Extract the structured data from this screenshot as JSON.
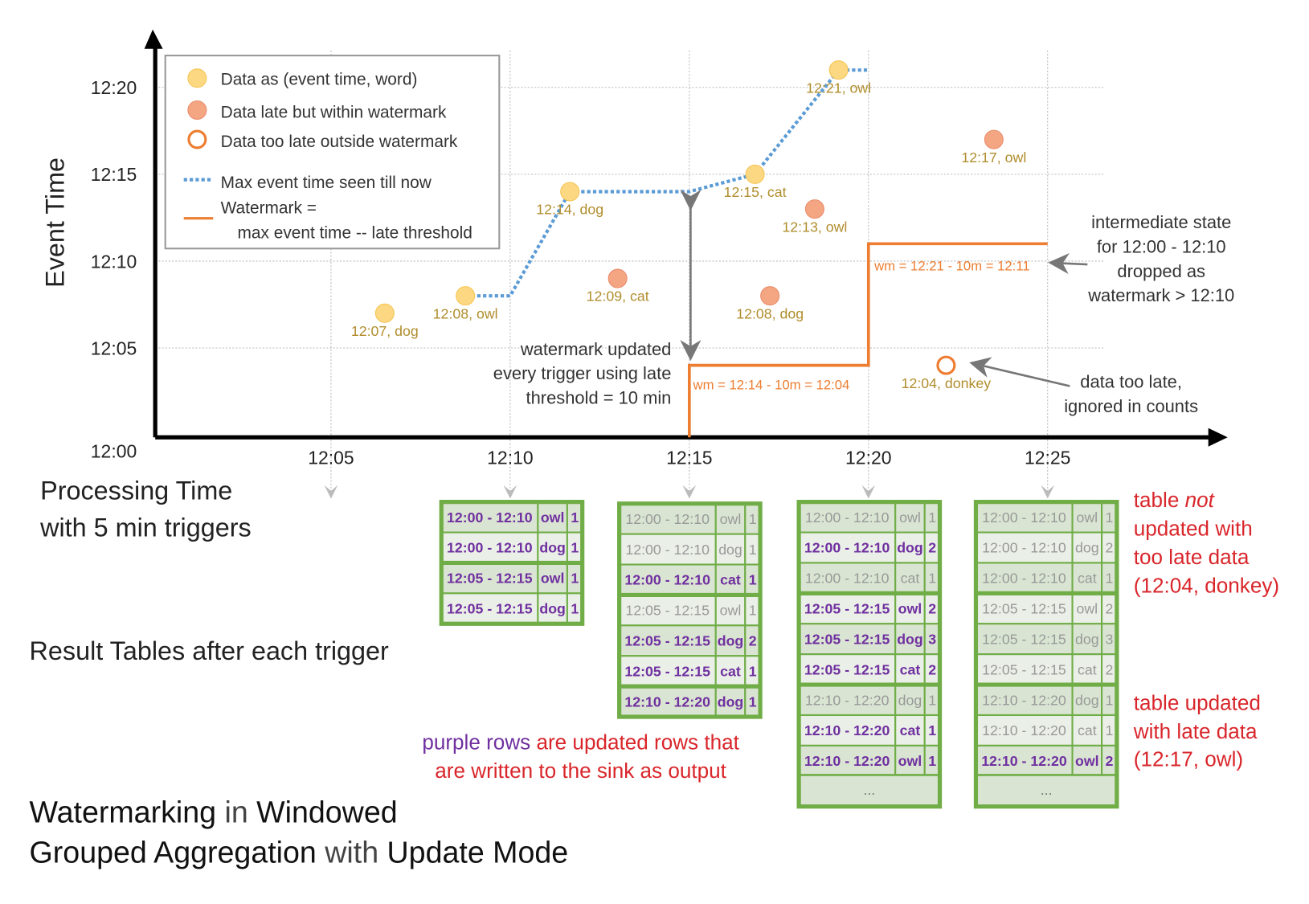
{
  "chart": {
    "y_axis_label": "Event Time",
    "x_axis_label_line1": "Processing Time",
    "x_axis_label_line2": "with 5 min triggers",
    "y_ticks": [
      "12:00",
      "12:05",
      "12:10",
      "12:15",
      "12:20"
    ],
    "x_ticks": [
      "12:05",
      "12:10",
      "12:15",
      "12:20",
      "12:25"
    ],
    "colors": {
      "data": "#fdd882",
      "late": "#f4a582",
      "too_late": "#ed7d31",
      "max_line": "#5b9bd5",
      "watermark": "#ed7d31",
      "label": "#b08d2c"
    },
    "points": [
      {
        "label": "12:07, dog",
        "event": "12:07",
        "processing": "12:06:30",
        "kind": "data"
      },
      {
        "label": "12:08, owl",
        "event": "12:08",
        "processing": "12:08:45",
        "kind": "data"
      },
      {
        "label": "12:14, dog",
        "event": "12:14",
        "processing": "12:11:40",
        "kind": "data"
      },
      {
        "label": "12:09, cat",
        "event": "12:09",
        "processing": "12:13:00",
        "kind": "late"
      },
      {
        "label": "12:15, cat",
        "event": "12:15",
        "processing": "12:16:50",
        "kind": "data"
      },
      {
        "label": "12:13, owl",
        "event": "12:13",
        "processing": "12:18:30",
        "kind": "late"
      },
      {
        "label": "12:08, dog",
        "event": "12:08",
        "processing": "12:17:15",
        "kind": "late"
      },
      {
        "label": "12:21, owl",
        "event": "12:21",
        "processing": "12:19:10",
        "kind": "data"
      },
      {
        "label": "12:17, owl",
        "event": "12:17",
        "processing": "12:23:30",
        "kind": "late"
      },
      {
        "label": "12:04, donkey",
        "event": "12:04",
        "processing": "12:22:10",
        "kind": "too_late"
      }
    ],
    "max_event_line": [
      [
        "12:08:45",
        "12:08"
      ],
      [
        "12:10:00",
        "12:08"
      ],
      [
        "12:11:40",
        "12:14"
      ],
      [
        "12:15:00",
        "12:14"
      ],
      [
        "12:16:50",
        "12:15"
      ],
      [
        "12:19:10",
        "12:21"
      ],
      [
        "12:20:00",
        "12:21"
      ]
    ],
    "watermark_line": [
      [
        "12:15:00",
        "12:00"
      ],
      [
        "12:15:00",
        "12:04"
      ],
      [
        "12:20:00",
        "12:04"
      ],
      [
        "12:20:00",
        "12:11"
      ],
      [
        "12:25:00",
        "12:11"
      ]
    ],
    "wm_label_1": "wm = 12:14 - 10m = 12:04",
    "wm_label_2": "wm = 12:21 - 10m = 12:11"
  },
  "legend": {
    "data": "Data as (event time, word)",
    "late": "Data late but within watermark",
    "too_late": "Data too late outside watermark",
    "max_line": "Max event time seen till now",
    "watermark_1": "Watermark =",
    "watermark_2": "max event time -- late threshold"
  },
  "annotations": {
    "wm_updated": [
      "watermark updated",
      "every trigger using late",
      "threshold = 10 min"
    ],
    "intermediate": [
      "intermediate state",
      "for 12:00 - 12:10",
      "dropped as",
      "watermark > 12:10"
    ],
    "too_late": [
      "data too late,",
      "ignored in counts"
    ],
    "result_tables": "Result Tables after each trigger",
    "purple_1a": "purple rows",
    "purple_1b": " are updated rows that",
    "purple_2": "are written to the sink as output",
    "not_updated": [
      "table ",
      "not",
      "updated with",
      "too late data",
      "(12:04, donkey)"
    ],
    "updated": [
      "table updated",
      "with late data",
      "(12:17, owl)"
    ]
  },
  "title": {
    "l1a": "Watermarking",
    "l1b": " in ",
    "l1c": "Windowed",
    "l2a": "Grouped Aggregation",
    "l2b": " with ",
    "l2c": "Update Mode"
  },
  "tables": [
    {
      "rows": [
        [
          "12:00 - 12:10",
          "owl",
          "1",
          true
        ],
        [
          "12:00 - 12:10",
          "dog",
          "1",
          true
        ],
        [
          "12:05 - 12:15",
          "owl",
          "1",
          true
        ],
        [
          "12:05 - 12:15",
          "dog",
          "1",
          true
        ]
      ]
    },
    {
      "rows": [
        [
          "12:00 - 12:10",
          "owl",
          "1",
          false
        ],
        [
          "12:00 - 12:10",
          "dog",
          "1",
          false
        ],
        [
          "12:00 - 12:10",
          "cat",
          "1",
          true
        ],
        [
          "12:05 - 12:15",
          "owl",
          "1",
          false
        ],
        [
          "12:05 - 12:15",
          "dog",
          "2",
          true
        ],
        [
          "12:05 - 12:15",
          "cat",
          "1",
          true
        ],
        [
          "12:10 - 12:20",
          "dog",
          "1",
          true
        ]
      ]
    },
    {
      "rows": [
        [
          "12:00 - 12:10",
          "owl",
          "1",
          false
        ],
        [
          "12:00 - 12:10",
          "dog",
          "2",
          true
        ],
        [
          "12:00 - 12:10",
          "cat",
          "1",
          false
        ],
        [
          "12:05 - 12:15",
          "owl",
          "2",
          true
        ],
        [
          "12:05 - 12:15",
          "dog",
          "3",
          true
        ],
        [
          "12:05 - 12:15",
          "cat",
          "2",
          true
        ],
        [
          "12:10 - 12:20",
          "dog",
          "1",
          false
        ],
        [
          "12:10 - 12:20",
          "cat",
          "1",
          true
        ],
        [
          "12:10 - 12:20",
          "owl",
          "1",
          true
        ]
      ],
      "more": "..."
    },
    {
      "rows": [
        [
          "12:00 - 12:10",
          "owl",
          "1",
          false
        ],
        [
          "12:00 - 12:10",
          "dog",
          "2",
          false
        ],
        [
          "12:00 - 12:10",
          "cat",
          "1",
          false
        ],
        [
          "12:05 - 12:15",
          "owl",
          "2",
          false
        ],
        [
          "12:05 - 12:15",
          "dog",
          "3",
          false
        ],
        [
          "12:05 - 12:15",
          "cat",
          "2",
          false
        ],
        [
          "12:10 - 12:20",
          "dog",
          "1",
          false
        ],
        [
          "12:10 - 12:20",
          "cat",
          "1",
          false
        ],
        [
          "12:10 - 12:20",
          "owl",
          "2",
          true
        ]
      ],
      "more": "..."
    }
  ]
}
